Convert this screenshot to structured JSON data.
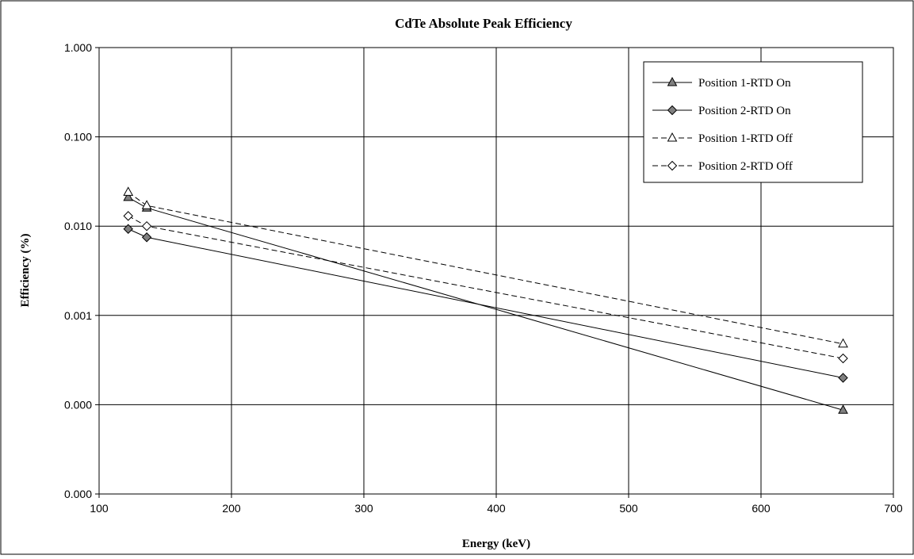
{
  "chart_data": {
    "type": "line",
    "title": "CdTe Absolute Peak Efficiency",
    "xlabel": "Energy (keV)",
    "ylabel": "Efficiency (%)",
    "x_scale": "linear",
    "y_scale": "log",
    "xlim": [
      100,
      700
    ],
    "ylim": [
      1e-05,
      1.0
    ],
    "x_ticks": [
      100,
      200,
      300,
      400,
      500,
      600,
      700
    ],
    "y_ticks": [
      {
        "value": 1e-05,
        "label": "0.000"
      },
      {
        "value": 0.0001,
        "label": "0.000"
      },
      {
        "value": 0.001,
        "label": "0.001"
      },
      {
        "value": 0.01,
        "label": "0.010"
      },
      {
        "value": 0.1,
        "label": "0.100"
      },
      {
        "value": 1.0,
        "label": "1.000"
      }
    ],
    "grid": true,
    "legend_position": "top-right",
    "series": [
      {
        "name": "Position 1-RTD On",
        "marker": "triangle",
        "fill": "#808080",
        "dash": "solid",
        "x": [
          122,
          136,
          662
        ],
        "y": [
          0.021,
          0.016,
          8.7e-05
        ]
      },
      {
        "name": "Position 2-RTD On",
        "marker": "diamond",
        "fill": "#808080",
        "dash": "solid",
        "x": [
          122,
          136,
          662
        ],
        "y": [
          0.0093,
          0.0075,
          0.0002
        ]
      },
      {
        "name": "Position 1-RTD Off",
        "marker": "triangle",
        "fill": "#ffffff",
        "dash": "dashed",
        "x": [
          122,
          136,
          662
        ],
        "y": [
          0.024,
          0.017,
          0.00048
        ]
      },
      {
        "name": "Position 2-RTD Off",
        "marker": "diamond",
        "fill": "#ffffff",
        "dash": "dashed",
        "x": [
          122,
          136,
          662
        ],
        "y": [
          0.013,
          0.01,
          0.00033
        ]
      }
    ]
  }
}
